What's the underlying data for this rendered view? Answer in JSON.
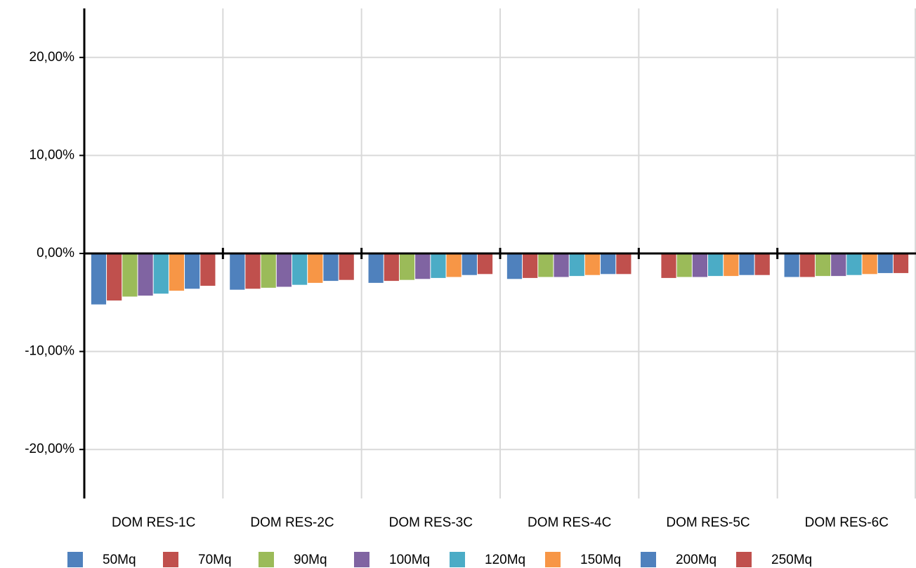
{
  "chart_data": {
    "type": "bar",
    "categories": [
      "DOM RES-1C",
      "DOM RES-2C",
      "DOM RES-3C",
      "DOM RES-4C",
      "DOM RES-5C",
      "DOM RES-6C"
    ],
    "series": [
      {
        "name": "50Mq",
        "color": "#4f81bd",
        "values": [
          -5.2,
          -3.7,
          -3.0,
          -2.6,
          null,
          -2.4
        ]
      },
      {
        "name": "70Mq",
        "color": "#c0504d",
        "values": [
          -4.8,
          -3.6,
          -2.8,
          -2.5,
          -2.5,
          -2.4
        ]
      },
      {
        "name": "90Mq",
        "color": "#9bbb59",
        "values": [
          -4.4,
          -3.5,
          -2.7,
          -2.4,
          -2.4,
          -2.3
        ]
      },
      {
        "name": "100Mq",
        "color": "#8064a2",
        "values": [
          -4.3,
          -3.4,
          -2.6,
          -2.4,
          -2.4,
          -2.3
        ]
      },
      {
        "name": "120Mq",
        "color": "#4bacc6",
        "values": [
          -4.1,
          -3.2,
          -2.5,
          -2.3,
          -2.3,
          -2.2
        ]
      },
      {
        "name": "150Mq",
        "color": "#f79646",
        "values": [
          -3.8,
          -3.0,
          -2.4,
          -2.2,
          -2.3,
          -2.1
        ]
      },
      {
        "name": "200Mq",
        "color": "#4f81bd",
        "values": [
          -3.6,
          -2.8,
          -2.2,
          -2.1,
          -2.2,
          -2.0
        ]
      },
      {
        "name": "250Mq",
        "color": "#c0504d",
        "values": [
          -3.3,
          -2.7,
          -2.1,
          -2.1,
          -2.2,
          -2.0
        ]
      }
    ],
    "ylim": [
      -25,
      25
    ],
    "yticks": [
      {
        "value": -20,
        "label": "-20,00%"
      },
      {
        "value": -10,
        "label": "-10,00%"
      },
      {
        "value": 0,
        "label": "0,00%"
      },
      {
        "value": 10,
        "label": "10,00%"
      },
      {
        "value": 20,
        "label": "20,00%"
      }
    ],
    "grid": true
  }
}
